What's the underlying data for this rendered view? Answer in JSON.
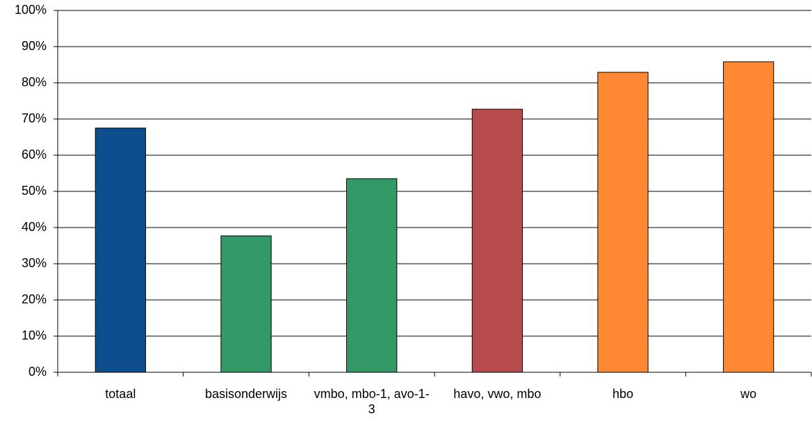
{
  "chart_data": {
    "type": "bar",
    "categories": [
      "totaal",
      "basisonderwijs",
      "vmbo, mbo-1, avo-1-3",
      "havo, vwo, mbo",
      "hbo",
      "wo"
    ],
    "values": [
      67.5,
      37.7,
      53.5,
      72.7,
      82.9,
      85.8
    ],
    "colors": [
      "#0d4e8c",
      "#339966",
      "#339966",
      "#b84c4c",
      "#ff8833",
      "#ff8833"
    ],
    "ylim": [
      0,
      100
    ],
    "yticks": [
      {
        "value": 0,
        "label": "0%"
      },
      {
        "value": 10,
        "label": "10%"
      },
      {
        "value": 20,
        "label": "20%"
      },
      {
        "value": 30,
        "label": "30%"
      },
      {
        "value": 40,
        "label": "40%"
      },
      {
        "value": 50,
        "label": "50%"
      },
      {
        "value": 60,
        "label": "60%"
      },
      {
        "value": 70,
        "label": "70%"
      },
      {
        "value": 80,
        "label": "80%"
      },
      {
        "value": 90,
        "label": "90%"
      },
      {
        "value": 100,
        "label": "100%"
      }
    ],
    "grid": true
  }
}
